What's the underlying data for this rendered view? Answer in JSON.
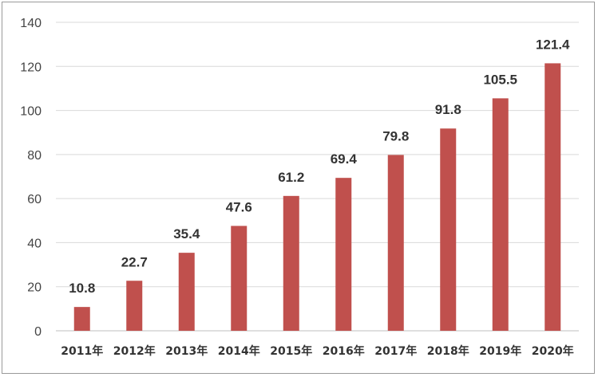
{
  "chart_data": {
    "type": "bar",
    "categories": [
      "2011年",
      "2012年",
      "2013年",
      "2014年",
      "2015年",
      "2016年",
      "2017年",
      "2018年",
      "2019年",
      "2020年"
    ],
    "values": [
      10.8,
      22.7,
      35.4,
      47.6,
      61.2,
      69.4,
      79.8,
      91.8,
      105.5,
      121.4
    ],
    "value_labels": [
      "10.8",
      "22.7",
      "35.4",
      "47.6",
      "61.2",
      "69.4",
      "79.8",
      "91.8",
      "105.5",
      "121.4"
    ],
    "yticks": [
      "0",
      "20",
      "40",
      "60",
      "80",
      "100",
      "120",
      "140"
    ],
    "ylim": [
      0,
      140
    ],
    "title": "",
    "xlabel": "",
    "ylabel": "",
    "grid": true,
    "legend": "none",
    "bar_color": "#c0504d"
  }
}
